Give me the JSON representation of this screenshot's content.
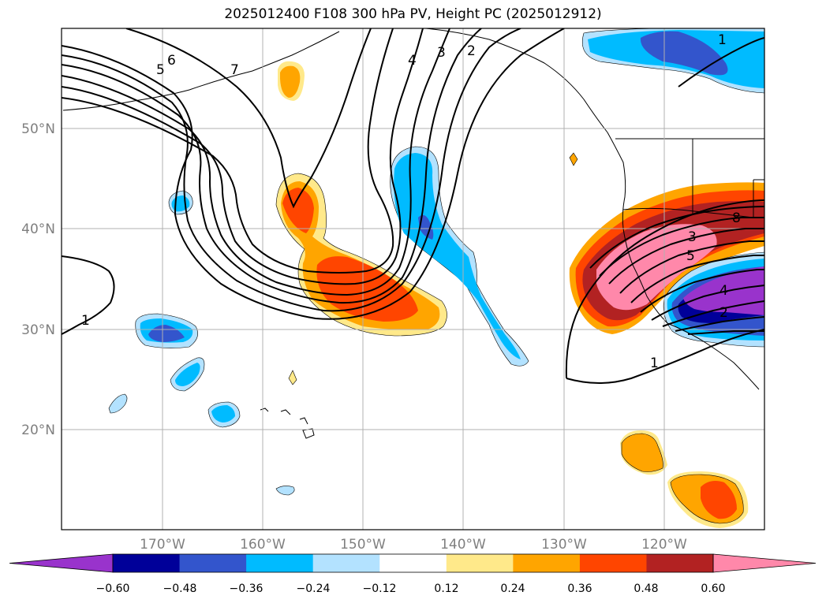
{
  "title": "2025012400 F108 300 hPa PV, Height PC (2025012912)",
  "colors": {
    "gridline": "#b0b0b0",
    "axis_label": "#7f7f7f",
    "height_contour": "#000000"
  },
  "map": {
    "lat_labels": [
      "50°N",
      "40°N",
      "30°N",
      "20°N"
    ],
    "lon_labels": [
      "170°W",
      "160°W",
      "150°W",
      "140°W",
      "130°W",
      "120°W"
    ],
    "contour_labels": [
      "1",
      "5",
      "6",
      "7",
      "4",
      "3",
      "2",
      "1",
      "8",
      "3",
      "5",
      "4",
      "2",
      "1"
    ]
  },
  "colorbar": {
    "colors": [
      "#9933cc",
      "#000099",
      "#3355cc",
      "#00bbff",
      "#b3e2ff",
      "#ffffff",
      "#ffe98a",
      "#ffa500",
      "#ff4500",
      "#b22222",
      "#ff88aa"
    ],
    "tick_labels": [
      "−0.60",
      "−0.48",
      "−0.36",
      "−0.24",
      "−0.12",
      "0.12",
      "0.24",
      "0.36",
      "0.48",
      "0.60"
    ]
  }
}
